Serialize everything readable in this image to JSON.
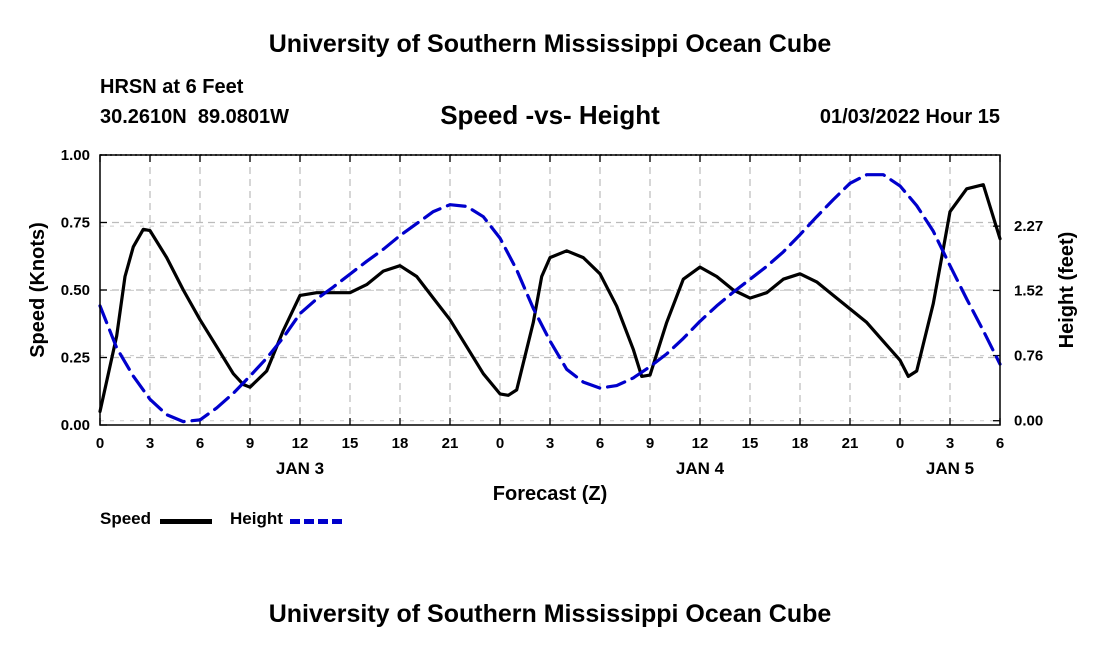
{
  "header": {
    "title": "University of Southern Mississippi Ocean Cube",
    "station": "HRSN at 6 Feet",
    "coords": "30.2610N  89.0801W",
    "datetime": "01/03/2022 Hour 15"
  },
  "footer": {
    "title": "University of Southern Mississippi Ocean Cube"
  },
  "legend": {
    "speed_label": "Speed",
    "height_label": "Height",
    "speed_color": "#000000",
    "height_color": "#0000cc"
  },
  "chart_data": {
    "type": "line",
    "title": "Speed -vs- Height",
    "xlabel": "Forecast (Z)",
    "ylabel": "Speed (Knots)",
    "y2label": "Height (feet)",
    "xlim": [
      0,
      54
    ],
    "ylim": [
      0,
      1.0
    ],
    "y2lim": [
      -0.05,
      3.1
    ],
    "grid": true,
    "x_ticks": [
      0,
      3,
      6,
      9,
      12,
      15,
      18,
      21,
      24,
      27,
      30,
      33,
      36,
      39,
      42,
      45,
      48,
      51,
      54
    ],
    "x_tick_labels": [
      "0",
      "3",
      "6",
      "9",
      "12",
      "15",
      "18",
      "21",
      "0",
      "3",
      "6",
      "9",
      "12",
      "15",
      "18",
      "21",
      "0",
      "3",
      "6"
    ],
    "y_ticks": [
      0,
      0.25,
      0.5,
      0.75,
      1.0
    ],
    "y_tick_labels": [
      "0.00",
      "0.25",
      "0.50",
      "0.75",
      "1.00"
    ],
    "y2_ticks": [
      0.0,
      0.76,
      1.52,
      2.27
    ],
    "y2_tick_labels": [
      "0.00",
      "0.76",
      "1.52",
      "2.27"
    ],
    "day_labels": [
      {
        "x": 12,
        "label": "JAN 3"
      },
      {
        "x": 36,
        "label": "JAN 4"
      },
      {
        "x": 51,
        "label": "JAN 5"
      }
    ],
    "series": [
      {
        "name": "Speed",
        "axis": "left",
        "style": "solid",
        "color": "#000000",
        "x": [
          0,
          1,
          1.5,
          2,
          2.6,
          3,
          4,
          5,
          6,
          7,
          8,
          8.6,
          9,
          10,
          11,
          12,
          13,
          14,
          15,
          16,
          17,
          18,
          19,
          20,
          21,
          22,
          23,
          24,
          24.5,
          25,
          26,
          26.5,
          27,
          28,
          29,
          30,
          31,
          32,
          32.5,
          33,
          34,
          35,
          36,
          37,
          38,
          39,
          40,
          41,
          42,
          43,
          44,
          45,
          46,
          47,
          48,
          48.5,
          49,
          50,
          50.5,
          51,
          52,
          53,
          54
        ],
        "values": [
          0.05,
          0.33,
          0.55,
          0.66,
          0.725,
          0.72,
          0.62,
          0.5,
          0.39,
          0.29,
          0.19,
          0.15,
          0.14,
          0.2,
          0.35,
          0.48,
          0.49,
          0.49,
          0.49,
          0.52,
          0.57,
          0.59,
          0.55,
          0.47,
          0.39,
          0.29,
          0.19,
          0.115,
          0.11,
          0.13,
          0.38,
          0.55,
          0.62,
          0.645,
          0.62,
          0.56,
          0.44,
          0.28,
          0.18,
          0.185,
          0.38,
          0.54,
          0.585,
          0.55,
          0.5,
          0.47,
          0.49,
          0.54,
          0.56,
          0.53,
          0.48,
          0.43,
          0.38,
          0.31,
          0.24,
          0.18,
          0.2,
          0.45,
          0.62,
          0.79,
          0.875,
          0.89,
          0.69
        ]
      },
      {
        "name": "Height",
        "axis": "right",
        "style": "dashed",
        "color": "#0000cc",
        "x": [
          0,
          1,
          2,
          3,
          4,
          5,
          6,
          7,
          8,
          9,
          10,
          11,
          12,
          13,
          14,
          15,
          16,
          17,
          18,
          19,
          20,
          21,
          22,
          23,
          24,
          25,
          26,
          27,
          28,
          29,
          30,
          31,
          32,
          33,
          34,
          35,
          36,
          37,
          38,
          39,
          40,
          41,
          42,
          43,
          44,
          45,
          46,
          47,
          48,
          49,
          50,
          51,
          52,
          53,
          54
        ],
        "values": [
          1.34,
          0.85,
          0.52,
          0.25,
          0.07,
          -0.01,
          0.01,
          0.15,
          0.32,
          0.52,
          0.73,
          0.97,
          1.25,
          1.42,
          1.56,
          1.71,
          1.86,
          2.0,
          2.16,
          2.3,
          2.44,
          2.52,
          2.5,
          2.38,
          2.13,
          1.76,
          1.31,
          0.93,
          0.6,
          0.45,
          0.38,
          0.41,
          0.5,
          0.63,
          0.78,
          0.96,
          1.16,
          1.34,
          1.5,
          1.65,
          1.8,
          1.97,
          2.17,
          2.38,
          2.58,
          2.77,
          2.87,
          2.87,
          2.74,
          2.51,
          2.21,
          1.81,
          1.42,
          1.05,
          0.66
        ]
      }
    ]
  }
}
